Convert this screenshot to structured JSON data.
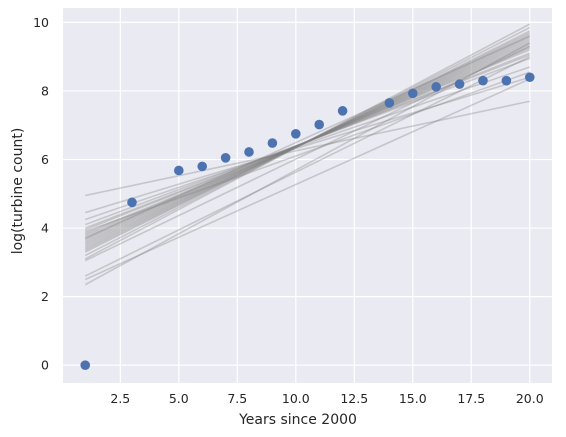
{
  "chart_data": {
    "type": "scatter",
    "title": "",
    "xlabel": "Years since 2000",
    "ylabel": "log(turbine count)",
    "xlim": [
      0.05,
      20.95
    ],
    "ylim": [
      -0.52,
      10.42
    ],
    "x_ticks": [
      2.5,
      5.0,
      7.5,
      10.0,
      12.5,
      15.0,
      17.5,
      20.0
    ],
    "x_tick_labels": [
      "2.5",
      "5.0",
      "7.5",
      "10.0",
      "12.5",
      "15.0",
      "17.5",
      "20.0"
    ],
    "y_ticks": [
      0,
      2,
      4,
      6,
      8,
      10
    ],
    "y_tick_labels": [
      "0",
      "2",
      "4",
      "6",
      "8",
      "10"
    ],
    "grid": true,
    "background": "#eaeaf2",
    "points": {
      "color": "#4c72b0",
      "x": [
        1,
        3,
        5,
        6,
        7,
        8,
        9,
        10,
        11,
        12,
        14,
        15,
        16,
        17,
        18,
        19,
        20
      ],
      "y": [
        0.0,
        4.75,
        5.68,
        5.8,
        6.05,
        6.22,
        6.48,
        6.75,
        7.02,
        7.42,
        7.65,
        7.93,
        8.12,
        8.2,
        8.3,
        8.3,
        8.4
      ]
    },
    "fit_lines": {
      "color": "#808080",
      "opacity": 0.35,
      "x_range": [
        1,
        20
      ],
      "lines": [
        {
          "y_start": 4.95,
          "y_end": 7.7
        },
        {
          "y_start": 4.45,
          "y_end": 8.4
        },
        {
          "y_start": 4.25,
          "y_end": 8.7
        },
        {
          "y_start": 4.1,
          "y_end": 8.95
        },
        {
          "y_start": 3.95,
          "y_end": 9.1
        },
        {
          "y_start": 3.85,
          "y_end": 9.2
        },
        {
          "y_start": 3.8,
          "y_end": 9.25
        },
        {
          "y_start": 3.75,
          "y_end": 9.3
        },
        {
          "y_start": 3.7,
          "y_end": 9.35
        },
        {
          "y_start": 3.65,
          "y_end": 9.4
        },
        {
          "y_start": 3.6,
          "y_end": 9.45
        },
        {
          "y_start": 3.55,
          "y_end": 9.5
        },
        {
          "y_start": 3.5,
          "y_end": 9.55
        },
        {
          "y_start": 3.45,
          "y_end": 9.6
        },
        {
          "y_start": 3.4,
          "y_end": 9.65
        },
        {
          "y_start": 3.35,
          "y_end": 9.7
        },
        {
          "y_start": 3.3,
          "y_end": 9.75
        },
        {
          "y_start": 3.2,
          "y_end": 9.85
        },
        {
          "y_start": 3.1,
          "y_end": 9.95
        },
        {
          "y_start": 3.05,
          "y_end": 9.3
        },
        {
          "y_start": 3.9,
          "y_end": 8.55
        },
        {
          "y_start": 4.0,
          "y_end": 9.05
        },
        {
          "y_start": 3.7,
          "y_end": 9.6
        },
        {
          "y_start": 2.6,
          "y_end": 9.0
        },
        {
          "y_start": 2.5,
          "y_end": 8.35
        },
        {
          "y_start": 2.35,
          "y_end": 9.4
        }
      ]
    }
  }
}
